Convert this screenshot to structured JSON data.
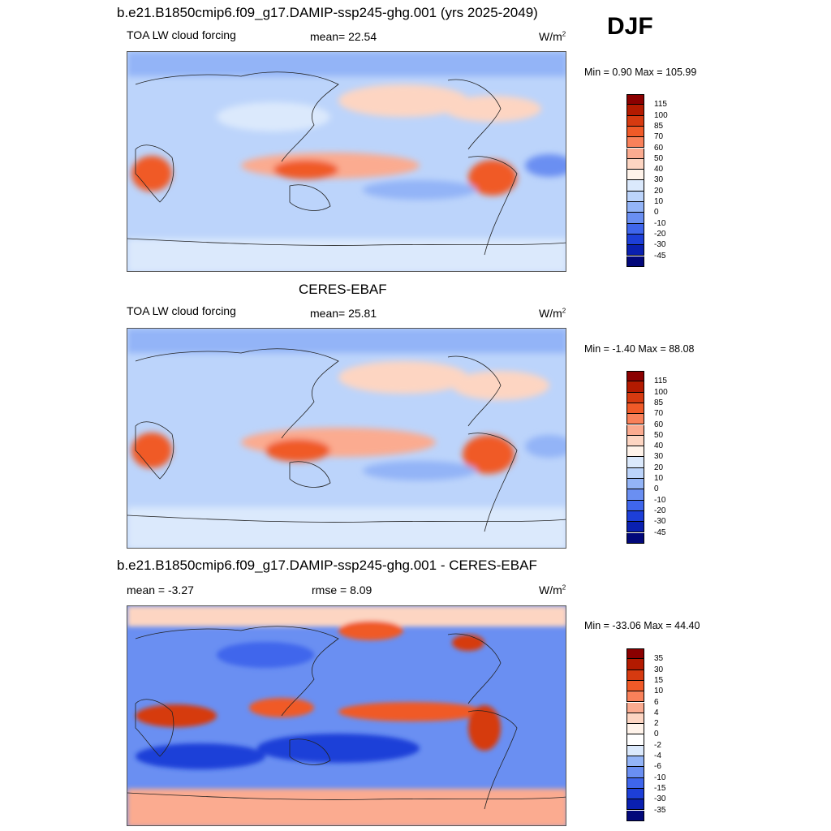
{
  "season": "DJF",
  "panels": [
    {
      "id": "model",
      "title": "b.e21.B1850cmip6.f09_g17.DAMIP-ssp245-ghg.001 (yrs 2025-2049)",
      "left_label": "TOA LW cloud forcing",
      "center_label": "mean=  22.54",
      "units": "W/m",
      "units_exp": "2",
      "minmax": "Min =   0.90 Max = 105.99",
      "colorbar": {
        "labels": [
          "115",
          "100",
          "85",
          "70",
          "60",
          "50",
          "40",
          "30",
          "20",
          "10",
          "0",
          "-10",
          "-20",
          "-30",
          "-45"
        ],
        "colors": [
          "#8b0000",
          "#b31a00",
          "#d63a10",
          "#f05a28",
          "#f9815a",
          "#fbab90",
          "#fdd5c2",
          "#fff3ea",
          "#dbe9fc",
          "#bcd4fb",
          "#93b4f7",
          "#6a8ff2",
          "#3f66ec",
          "#1d3fd8",
          "#0a20b0",
          "#02087a"
        ]
      }
    },
    {
      "id": "obs",
      "title": "CERES-EBAF",
      "left_label": "TOA LW cloud forcing",
      "center_label": "mean=  25.81",
      "units": "W/m",
      "units_exp": "2",
      "minmax": "Min =  -1.40 Max =  88.08",
      "colorbar": {
        "labels": [
          "115",
          "100",
          "85",
          "70",
          "60",
          "50",
          "40",
          "30",
          "20",
          "10",
          "0",
          "-10",
          "-20",
          "-30",
          "-45"
        ],
        "colors": [
          "#8b0000",
          "#b31a00",
          "#d63a10",
          "#f05a28",
          "#f9815a",
          "#fbab90",
          "#fdd5c2",
          "#fff3ea",
          "#dbe9fc",
          "#bcd4fb",
          "#93b4f7",
          "#6a8ff2",
          "#3f66ec",
          "#1d3fd8",
          "#0a20b0",
          "#02087a"
        ]
      }
    },
    {
      "id": "diff",
      "title": "b.e21.B1850cmip6.f09_g17.DAMIP-ssp245-ghg.001 - CERES-EBAF",
      "left_label": "mean =  -3.27",
      "center_label": "rmse =   8.09",
      "units": "W/m",
      "units_exp": "2",
      "minmax": "Min = -33.06 Max =  44.40",
      "colorbar": {
        "labels": [
          "35",
          "30",
          "15",
          "10",
          "6",
          "4",
          "2",
          "0",
          "-2",
          "-4",
          "-6",
          "-10",
          "-15",
          "-30",
          "-35"
        ],
        "colors": [
          "#8b0000",
          "#b31a00",
          "#d63a10",
          "#f05a28",
          "#f9815a",
          "#fbab90",
          "#fdd5c2",
          "#fff3ea",
          "#ffffff",
          "#dbe9fc",
          "#93b4f7",
          "#6a8ff2",
          "#3f66ec",
          "#1d3fd8",
          "#0a20b0",
          "#02087a"
        ]
      }
    }
  ]
}
